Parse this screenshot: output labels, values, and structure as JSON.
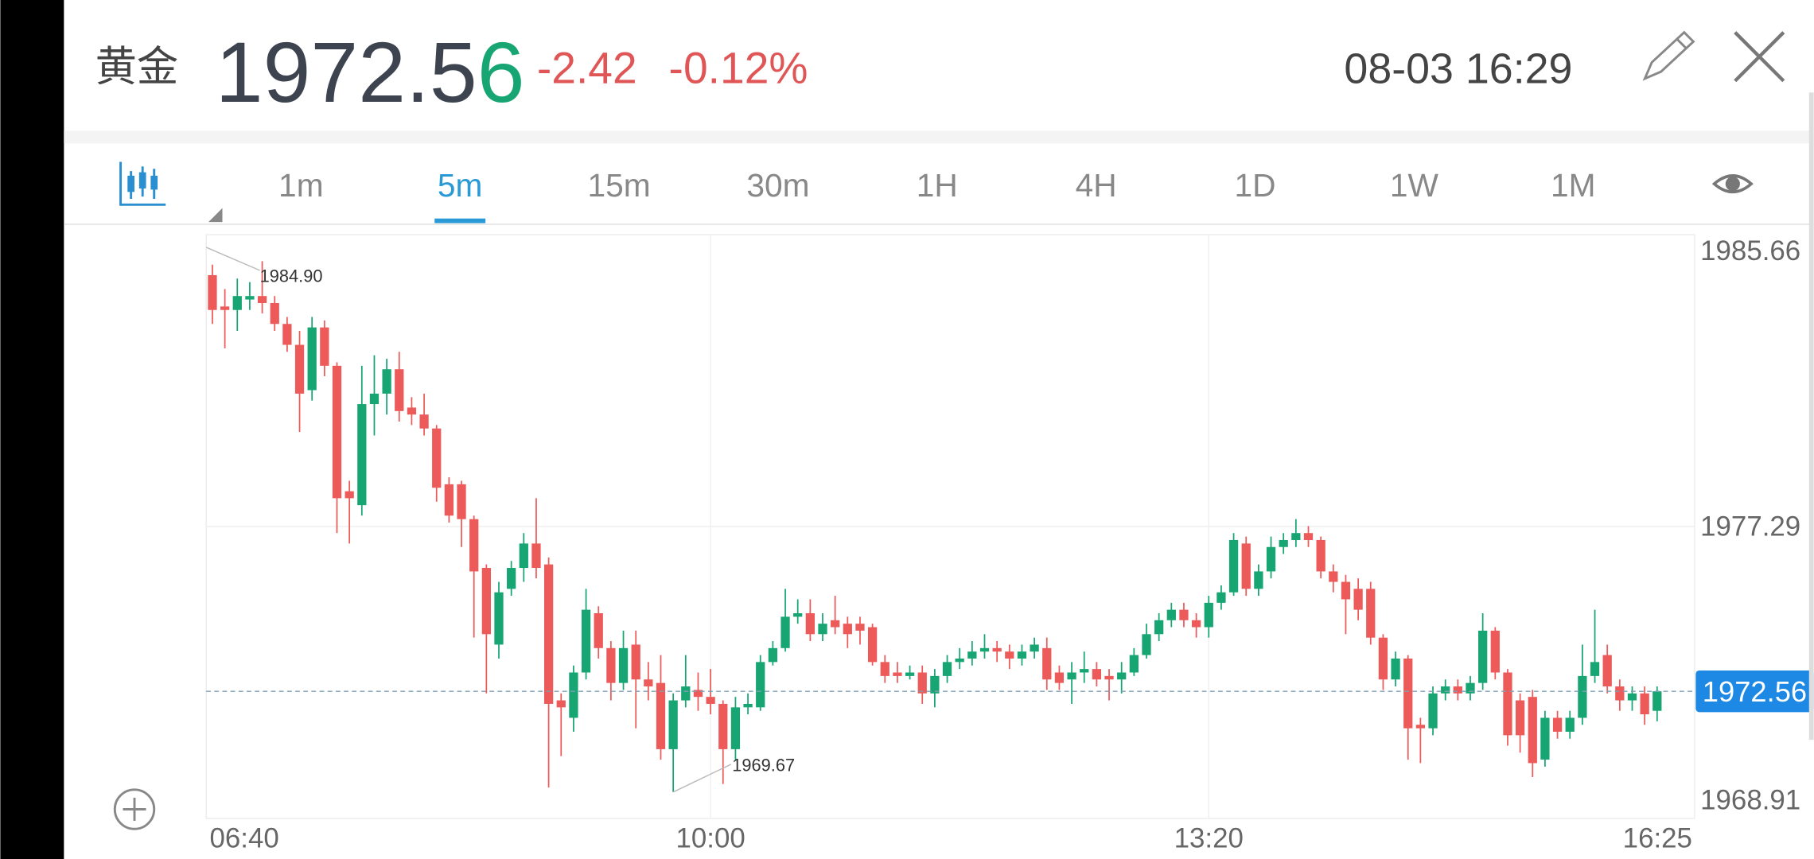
{
  "header": {
    "name": "黄金",
    "price_main": "1972.5",
    "price_last": "6",
    "change": "-2.42",
    "change_pct": "-0.12%",
    "datetime": "08-03 16:29"
  },
  "tabs": {
    "items": [
      "1m",
      "5m",
      "15m",
      "30m",
      "1H",
      "4H",
      "1D",
      "1W",
      "1M"
    ],
    "selected_index": 1
  },
  "chart_data": {
    "type": "candlestick",
    "categories": [
      "06:40",
      null,
      null,
      null,
      null,
      null,
      null,
      null,
      null,
      null,
      null,
      null,
      null,
      null,
      null,
      null,
      null,
      null,
      null,
      null,
      null,
      null,
      null,
      null,
      null,
      null,
      null,
      null,
      null,
      null,
      null,
      null,
      null,
      null,
      null,
      null,
      null,
      null,
      null,
      null,
      "10:00",
      null,
      null,
      null,
      null,
      null,
      null,
      null,
      null,
      null,
      null,
      null,
      null,
      null,
      null,
      null,
      null,
      null,
      null,
      null,
      null,
      null,
      null,
      null,
      null,
      null,
      null,
      null,
      null,
      null,
      null,
      null,
      null,
      null,
      null,
      null,
      null,
      null,
      null,
      null,
      "13:20",
      null,
      null,
      null,
      null,
      null,
      null,
      null,
      null,
      null,
      null,
      null,
      null,
      null,
      null,
      null,
      null,
      null,
      null,
      null,
      null,
      null,
      null,
      null,
      null,
      null,
      null,
      null,
      null,
      null,
      null,
      null,
      null,
      null,
      null,
      null,
      "16:25"
    ],
    "open": [
      1984.5,
      1983.6,
      1983.5,
      1983.8,
      1983.9,
      1983.7,
      1983.1,
      1982.5,
      1981.2,
      1983.0,
      1981.9,
      1978.3,
      1977.9,
      1980.8,
      1981.1,
      1981.8,
      1980.7,
      1980.5,
      1980.1,
      1978.5,
      1978.5,
      1977.5,
      1976.1,
      1973.9,
      1975.5,
      1976.1,
      1976.8,
      1976.2,
      1972.3,
      1971.8,
      1973.1,
      1974.8,
      1973.8,
      1972.8,
      1973.9,
      1972.9,
      1972.8,
      1970.9,
      1972.3,
      1972.6,
      1972.4,
      1972.2,
      1970.9,
      1972.1,
      1972.1,
      1973.4,
      1973.8,
      1974.7,
      1974.8,
      1974.2,
      1974.6,
      1974.5,
      1974.5,
      1974.4,
      1973.4,
      1973.1,
      1973.0,
      1973.1,
      1972.5,
      1973.0,
      1973.4,
      1973.5,
      1973.7,
      1973.8,
      1973.7,
      1973.5,
      1973.7,
      1973.8,
      1973.1,
      1972.9,
      1973.1,
      1973.2,
      1973.0,
      1972.9,
      1973.1,
      1973.6,
      1974.2,
      1974.6,
      1974.9,
      1974.6,
      1974.4,
      1975.1,
      1975.4,
      1976.8,
      1975.5,
      1976.0,
      1976.7,
      1976.9,
      1977.1,
      1976.9,
      1976.0,
      1975.7,
      1975.5,
      1975.5,
      1974.1,
      1972.9,
      1973.5,
      1971.6,
      1971.5,
      1972.5,
      1972.7,
      1972.5,
      1972.8,
      1974.3,
      1973.1,
      1972.3,
      1972.4,
      1970.6,
      1971.8,
      1971.4,
      1971.8,
      1973.0,
      1973.6,
      1972.7,
      1972.3,
      1972.5,
      1972.0
    ],
    "high": [
      1984.8,
      1984.1,
      1984.4,
      1984.3,
      1984.9,
      1983.9,
      1983.3,
      1982.9,
      1983.3,
      1983.2,
      1982.0,
      1978.6,
      1981.9,
      1982.2,
      1982.1,
      1982.3,
      1981.0,
      1981.1,
      1980.2,
      1978.7,
      1978.6,
      1977.6,
      1976.2,
      1975.7,
      1976.3,
      1977.1,
      1978.1,
      1976.4,
      1972.5,
      1973.3,
      1975.5,
      1975.0,
      1974.0,
      1974.3,
      1974.3,
      1973.4,
      1973.6,
      1972.5,
      1973.6,
      1973.1,
      1973.2,
      1972.3,
      1972.4,
      1972.5,
      1973.6,
      1974.0,
      1975.5,
      1975.2,
      1975.2,
      1974.8,
      1975.3,
      1974.7,
      1974.7,
      1974.5,
      1973.6,
      1973.4,
      1973.3,
      1973.3,
      1973.2,
      1973.6,
      1973.8,
      1974.0,
      1974.2,
      1974.0,
      1973.9,
      1973.9,
      1974.1,
      1974.1,
      1973.3,
      1973.4,
      1973.7,
      1973.4,
      1973.2,
      1973.4,
      1973.8,
      1974.5,
      1974.8,
      1975.1,
      1975.1,
      1974.8,
      1975.3,
      1975.6,
      1977.1,
      1977.0,
      1976.2,
      1977.0,
      1977.1,
      1977.5,
      1977.3,
      1977.0,
      1976.2,
      1975.9,
      1975.8,
      1975.7,
      1974.2,
      1973.7,
      1973.6,
      1971.8,
      1972.7,
      1972.9,
      1972.9,
      1973.0,
      1974.8,
      1974.4,
      1973.2,
      1972.5,
      1972.6,
      1972.0,
      1972.0,
      1972.0,
      1973.9,
      1974.9,
      1973.9,
      1972.9,
      1972.7,
      1972.7,
      1972.7
    ],
    "low": [
      1983.1,
      1982.4,
      1982.9,
      1983.5,
      1983.4,
      1982.9,
      1982.3,
      1980.0,
      1980.9,
      1981.6,
      1977.1,
      1976.8,
      1977.6,
      1979.9,
      1980.5,
      1980.3,
      1980.2,
      1979.9,
      1978.0,
      1977.4,
      1976.7,
      1974.1,
      1972.5,
      1973.5,
      1975.3,
      1975.7,
      1975.8,
      1969.8,
      1970.7,
      1971.4,
      1972.9,
      1973.5,
      1972.3,
      1972.6,
      1971.5,
      1972.3,
      1970.6,
      1969.67,
      1972.1,
      1972.0,
      1971.9,
      1969.9,
      1970.6,
      1971.9,
      1972.0,
      1973.3,
      1973.7,
      1974.5,
      1974.0,
      1974.0,
      1974.2,
      1973.8,
      1973.9,
      1973.3,
      1972.8,
      1972.8,
      1972.9,
      1972.2,
      1972.1,
      1972.8,
      1973.2,
      1973.3,
      1973.5,
      1973.4,
      1973.2,
      1973.3,
      1973.5,
      1972.6,
      1972.6,
      1972.2,
      1972.8,
      1972.7,
      1972.3,
      1972.5,
      1973.0,
      1973.5,
      1974.0,
      1974.4,
      1974.4,
      1974.1,
      1974.1,
      1974.9,
      1975.3,
      1975.3,
      1975.3,
      1975.8,
      1976.5,
      1976.7,
      1976.7,
      1975.8,
      1975.4,
      1974.2,
      1974.6,
      1973.9,
      1972.6,
      1972.7,
      1970.6,
      1970.5,
      1971.3,
      1972.3,
      1972.3,
      1972.3,
      1972.6,
      1972.9,
      1971.0,
      1970.8,
      1970.1,
      1970.4,
      1971.2,
      1971.2,
      1971.6,
      1972.8,
      1972.5,
      1972.0,
      1972.0,
      1971.6,
      1971.7
    ],
    "close": [
      1983.5,
      1983.5,
      1983.9,
      1983.9,
      1983.7,
      1983.1,
      1982.5,
      1981.1,
      1983.0,
      1981.9,
      1978.1,
      1978.1,
      1980.8,
      1981.1,
      1981.8,
      1980.6,
      1980.5,
      1980.1,
      1978.4,
      1977.6,
      1977.5,
      1976.0,
      1974.2,
      1975.4,
      1976.1,
      1976.8,
      1976.1,
      1972.2,
      1972.1,
      1973.1,
      1974.9,
      1973.8,
      1972.8,
      1973.8,
      1972.9,
      1972.7,
      1970.9,
      1972.3,
      1972.7,
      1972.4,
      1972.2,
      1970.9,
      1972.1,
      1972.2,
      1973.4,
      1973.8,
      1974.7,
      1974.8,
      1974.2,
      1974.5,
      1974.4,
      1974.2,
      1974.3,
      1973.4,
      1973.0,
      1973.0,
      1973.1,
      1972.5,
      1973.0,
      1973.4,
      1973.5,
      1973.7,
      1973.8,
      1973.7,
      1973.5,
      1973.7,
      1973.9,
      1972.9,
      1972.8,
      1973.1,
      1973.2,
      1972.9,
      1972.9,
      1973.1,
      1973.6,
      1974.2,
      1974.6,
      1974.9,
      1974.6,
      1974.4,
      1975.1,
      1975.4,
      1976.9,
      1975.5,
      1976.0,
      1976.7,
      1976.9,
      1977.1,
      1976.9,
      1976.0,
      1975.7,
      1975.2,
      1974.9,
      1974.1,
      1972.9,
      1973.5,
      1971.5,
      1971.5,
      1972.5,
      1972.7,
      1972.5,
      1972.8,
      1974.3,
      1973.1,
      1971.3,
      1971.3,
      1970.5,
      1971.8,
      1971.4,
      1971.8,
      1973.0,
      1973.4,
      1972.7,
      1972.3,
      1972.5,
      1971.9,
      1972.56
    ],
    "up_color": "#17a673",
    "down_color": "#ec5a5a",
    "ylim": [
      1968.91,
      1985.66
    ],
    "yticks": [
      1985.66,
      1977.29,
      1968.91
    ],
    "grid": true,
    "last_price": 1972.56,
    "max_label": "1984.90",
    "min_label": "1969.67"
  }
}
